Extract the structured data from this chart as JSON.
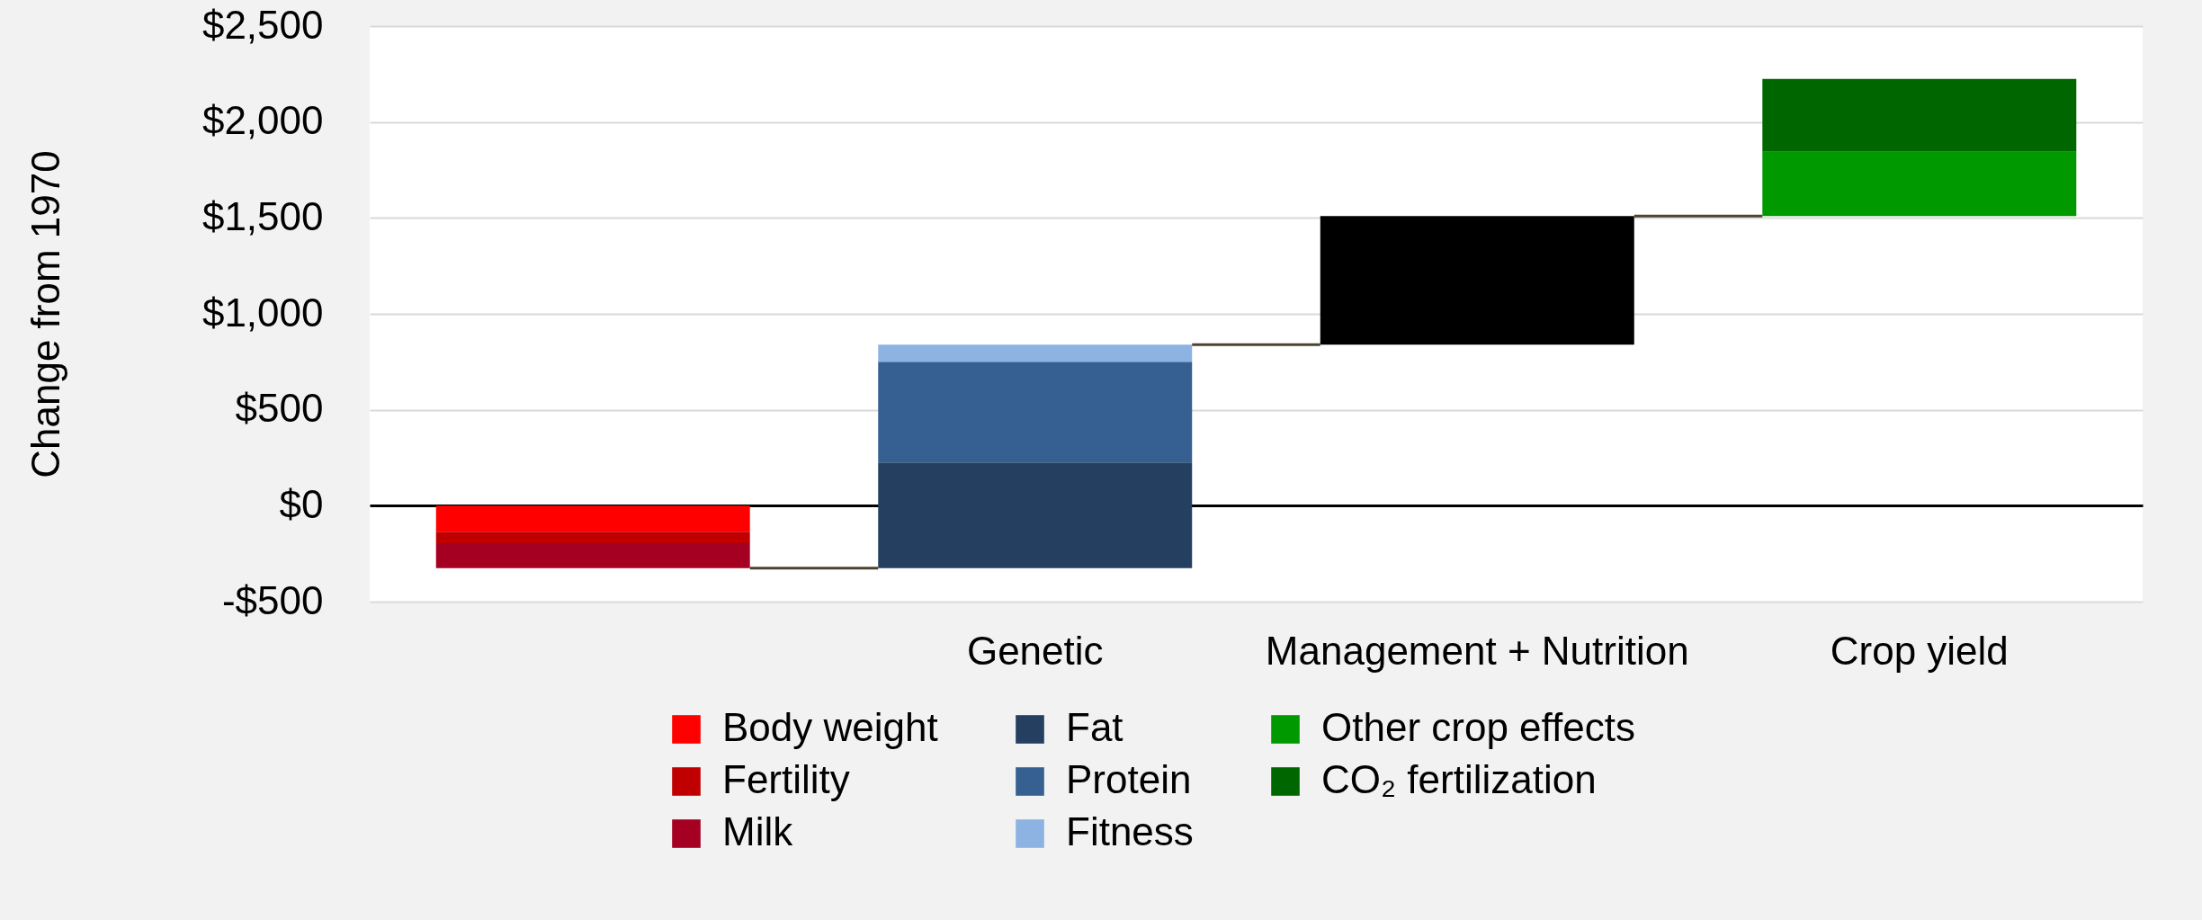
{
  "chart_data": {
    "type": "bar",
    "ylabel": "Change from 1970",
    "categories": [
      null,
      "Genetic",
      "Management + Nutrition",
      "Crop yield"
    ],
    "stacked": true,
    "series": [
      {
        "name": "Body weight",
        "color": "#ff0000",
        "values": [
          -135,
          null,
          null,
          null
        ],
        "base": [
          0,
          null,
          null,
          null
        ]
      },
      {
        "name": "Fertility",
        "color": "#c00000",
        "values": [
          -60,
          null,
          null,
          null
        ],
        "base": [
          -135,
          null,
          null,
          null
        ]
      },
      {
        "name": "Milk",
        "color": "#a50021",
        "values": [
          -130,
          null,
          null,
          null
        ],
        "base": [
          -195,
          null,
          null,
          null
        ]
      },
      {
        "name": "Fat",
        "color": "#253f60",
        "values": [
          null,
          550,
          null,
          null
        ],
        "base": [
          null,
          -325,
          null,
          null
        ]
      },
      {
        "name": "Protein",
        "color": "#366092",
        "values": [
          null,
          525,
          null,
          null
        ],
        "base": [
          null,
          225,
          null,
          null
        ]
      },
      {
        "name": "Fitness",
        "color": "#8db3e2",
        "values": [
          null,
          90,
          null,
          null
        ],
        "base": [
          null,
          750,
          null,
          null
        ]
      },
      {
        "color": "#000000",
        "values": [
          null,
          null,
          670,
          null
        ],
        "base": [
          null,
          null,
          840,
          null
        ]
      },
      {
        "name": "Other crop effects",
        "color": "#009900",
        "values": [
          null,
          null,
          null,
          335
        ],
        "base": [
          null,
          null,
          null,
          1510
        ]
      },
      {
        "name": "CO₂ fertilization",
        "color": "#006600",
        "values": [
          null,
          null,
          null,
          380
        ],
        "base": [
          null,
          null,
          null,
          1845
        ]
      }
    ],
    "ylim": [
      -500,
      2500
    ],
    "yticks": [
      {
        "value": -500,
        "label": "-$500"
      },
      {
        "value": 0,
        "label": "$0"
      },
      {
        "value": 500,
        "label": "$500"
      },
      {
        "value": 1000,
        "label": "$1,000"
      },
      {
        "value": 1500,
        "label": "$1,500"
      },
      {
        "value": 2000,
        "label": "$2,000"
      },
      {
        "value": 2500,
        "label": "$2,500"
      }
    ],
    "grid": "y",
    "legend": "bottom"
  }
}
